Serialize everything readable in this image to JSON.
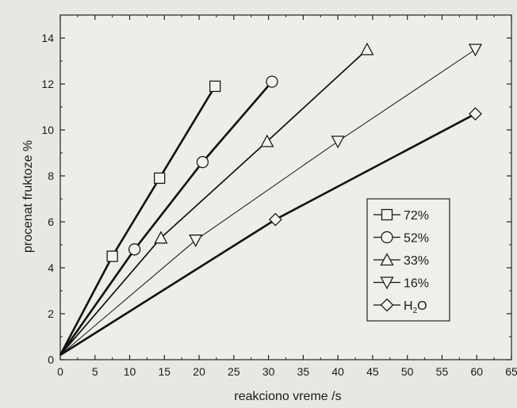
{
  "chart_data": {
    "type": "line",
    "title": "",
    "xlabel": "reakciono vreme /s",
    "ylabel": "procenat fruktoze %",
    "xlim": [
      0,
      65
    ],
    "ylim": [
      0,
      15
    ],
    "x_ticks": [
      0,
      5,
      10,
      15,
      20,
      25,
      30,
      35,
      40,
      45,
      50,
      55,
      60,
      65
    ],
    "y_ticks": [
      0,
      2,
      4,
      6,
      8,
      10,
      12,
      14
    ],
    "grid": false,
    "legend_position": "lower-right",
    "series": [
      {
        "name": "72%",
        "marker": "square",
        "line_weight": "bold",
        "x": [
          0,
          7.5,
          14.3,
          22.3
        ],
        "y": [
          0.2,
          4.5,
          7.9,
          11.9
        ]
      },
      {
        "name": "52%",
        "marker": "circle",
        "line_weight": "bold",
        "x": [
          0,
          10.7,
          20.5,
          30.5
        ],
        "y": [
          0.2,
          4.8,
          8.6,
          12.1
        ]
      },
      {
        "name": "33%",
        "marker": "triangle-up",
        "line_weight": "medium",
        "x": [
          0,
          14.5,
          29.8,
          44.2
        ],
        "y": [
          0.2,
          5.3,
          9.5,
          13.5
        ]
      },
      {
        "name": "16%",
        "marker": "triangle-down",
        "line_weight": "thin",
        "x": [
          0,
          19.5,
          40.0,
          59.8
        ],
        "y": [
          0.2,
          5.2,
          9.5,
          13.5
        ]
      },
      {
        "name": "H2O",
        "label_main": "H",
        "label_sub": "2",
        "label_tail": "O",
        "marker": "diamond",
        "line_weight": "bold",
        "x": [
          0,
          31.0,
          59.8
        ],
        "y": [
          0.2,
          6.1,
          10.7
        ]
      }
    ]
  }
}
